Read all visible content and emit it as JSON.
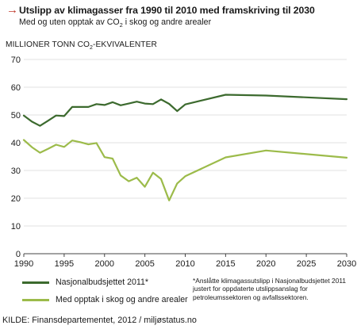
{
  "header": {
    "arrow": "→",
    "title": "Utslipp av klimagasser fra 1990 til 2010 med framskriving til 2030",
    "subtitle_pre": "Med og uten opptak av CO",
    "subtitle_sub": "2",
    "subtitle_post": " i skog og andre arealer",
    "ylabel_pre": "MILLIONER TONN CO",
    "ylabel_sub": "2",
    "ylabel_post": "-EKVIVALENTER"
  },
  "legend": [
    {
      "label": "Nasjonalbudsjettet 2011*",
      "color": "#3c6a2e"
    },
    {
      "label": "Med opptak i skog og andre arealer",
      "color": "#9cbb4a"
    }
  ],
  "note": "*Anslåtte klimagassutslipp i Nasjonalbudsjettet 2011 justert for oppdaterte utslippsanslag for petroleumssektoren og avfallssektoren.",
  "source": "KILDE: Finansdepartementet, 2012 / miljøstatus.no",
  "chart_data": {
    "type": "line",
    "title": "Utslipp av klimagasser fra 1990 til 2010 med framskriving til 2030",
    "xlim": [
      1990,
      2030
    ],
    "ylim": [
      0,
      70
    ],
    "xticks": [
      1990,
      1995,
      2000,
      2005,
      2010,
      2015,
      2020,
      2025,
      2030
    ],
    "yticks": [
      0,
      10,
      20,
      30,
      40,
      50,
      60,
      70
    ],
    "grid": "horizontal",
    "legend_position": "bottom",
    "series": [
      {
        "name": "Nasjonalbudsjettet 2011*",
        "color": "#3c6a2e",
        "x": [
          1990,
          1991,
          1992,
          1993,
          1994,
          1995,
          1996,
          1997,
          1998,
          1999,
          2000,
          2001,
          2002,
          2003,
          2004,
          2005,
          2006,
          2007,
          2008,
          2009,
          2010,
          2015,
          2020,
          2030
        ],
        "y": [
          49.8,
          47.6,
          46.1,
          47.9,
          49.8,
          49.6,
          52.9,
          52.9,
          52.9,
          53.9,
          53.6,
          54.6,
          53.5,
          54.1,
          54.8,
          54.1,
          53.9,
          55.6,
          54.0,
          51.4,
          53.8,
          57.3,
          57.0,
          55.7
        ]
      },
      {
        "name": "Med opptak i skog og andre arealer",
        "color": "#9cbb4a",
        "x": [
          1990,
          1991,
          1992,
          1993,
          1994,
          1995,
          1996,
          1997,
          1998,
          1999,
          2000,
          2001,
          2002,
          2003,
          2004,
          2005,
          2006,
          2007,
          2008,
          2009,
          2010,
          2015,
          2020,
          2030
        ],
        "y": [
          41.0,
          38.4,
          36.4,
          37.8,
          39.3,
          38.5,
          40.8,
          40.2,
          39.4,
          39.9,
          34.8,
          34.3,
          28.2,
          26.1,
          27.4,
          24.1,
          29.2,
          26.9,
          19.2,
          25.3,
          27.9,
          34.7,
          37.2,
          34.6
        ]
      }
    ]
  }
}
